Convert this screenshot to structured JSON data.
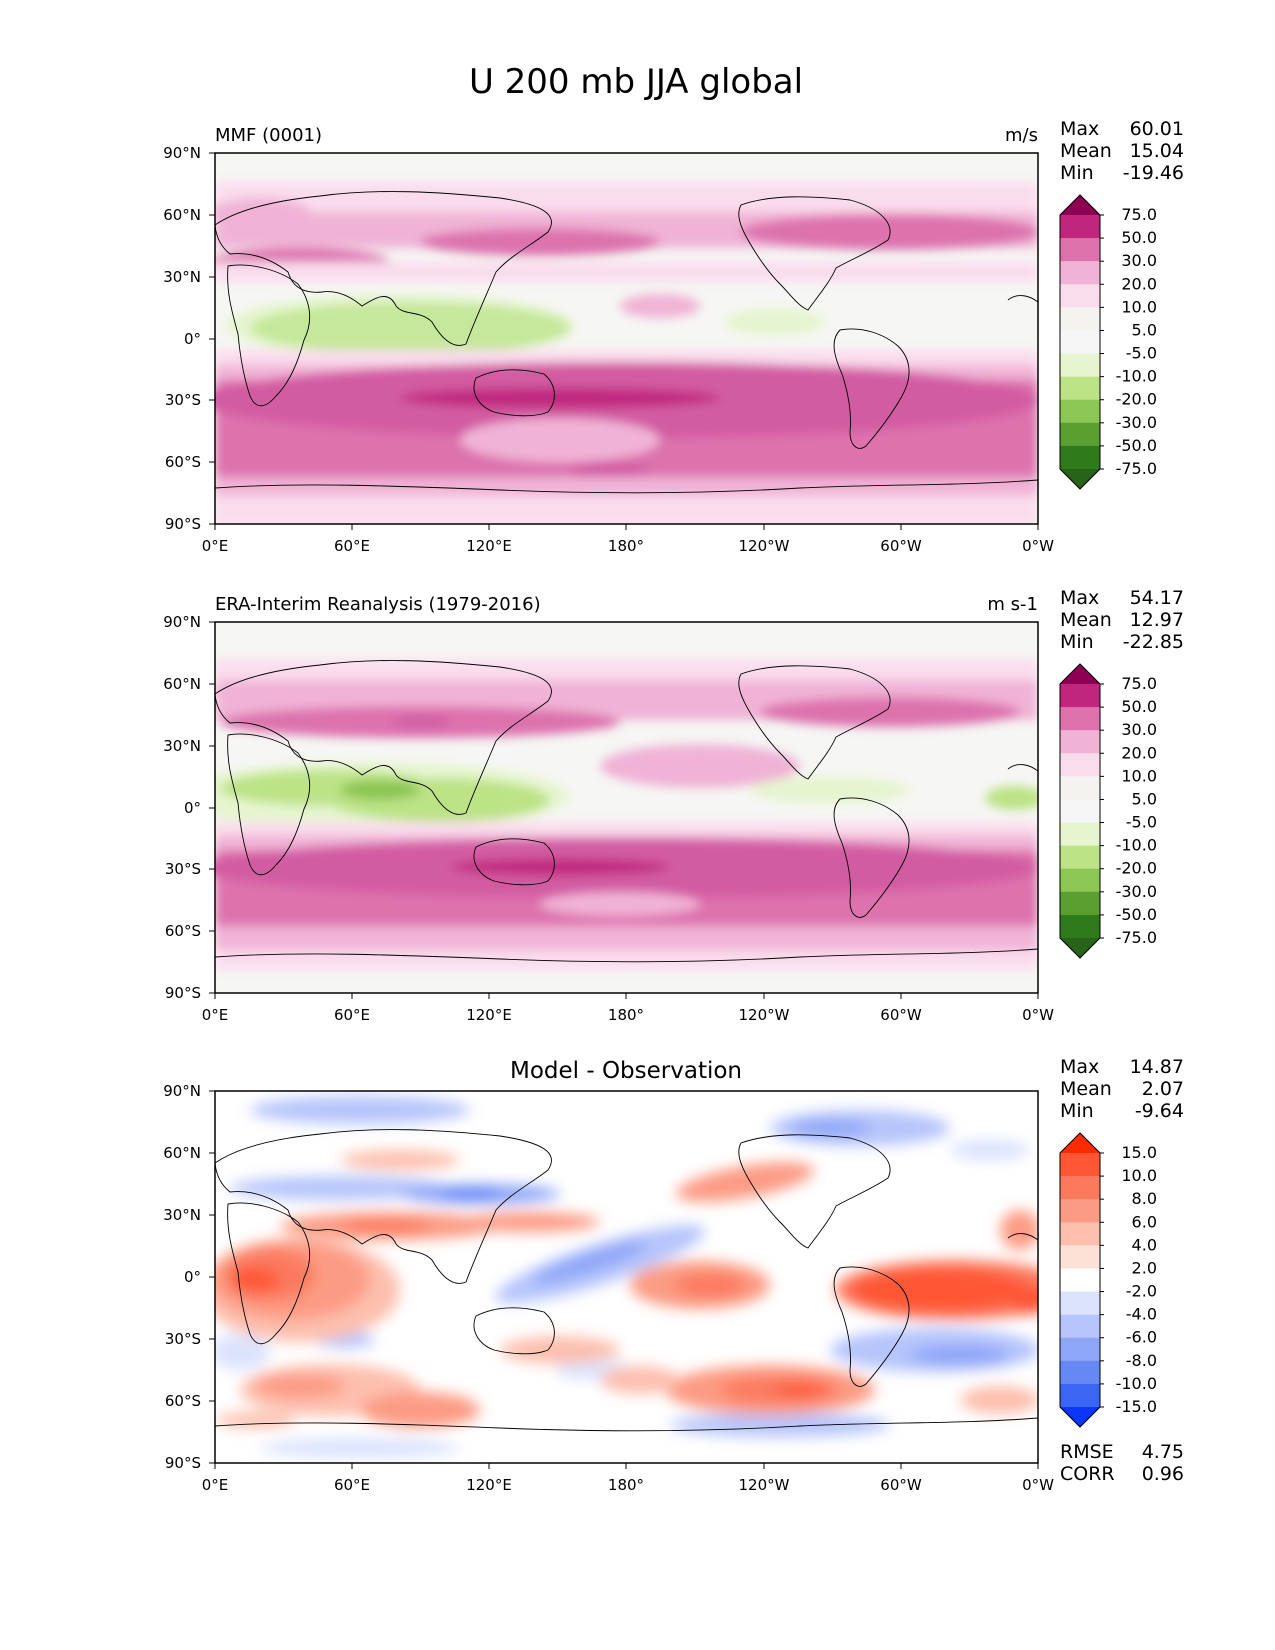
{
  "figure": {
    "title": "U 200 mb JJA global"
  },
  "lon_ticks": [
    "0°E",
    "60°E",
    "120°E",
    "180°",
    "120°W",
    "60°W",
    "0°W"
  ],
  "lat_ticks": [
    "90°N",
    "60°N",
    "30°N",
    "0°",
    "30°S",
    "60°S",
    "90°S"
  ],
  "panels": [
    {
      "left_title": "MMF (0001)",
      "center_title": "",
      "units": "m/s",
      "stats": [
        {
          "label": "Max",
          "value": "60.01"
        },
        {
          "label": "Mean",
          "value": "15.04"
        },
        {
          "label": "Min",
          "value": "-19.46"
        }
      ],
      "colorbar": {
        "labels": [
          "75.0",
          "50.0",
          "30.0",
          "20.0",
          "10.0",
          "5.0",
          "-5.0",
          "-10.0",
          "-20.0",
          "-30.0",
          "-50.0",
          "-75.0"
        ],
        "colors": [
          "#8e0152",
          "#c0267e",
          "#dd72ad",
          "#f0b3d6",
          "#fadded",
          "#f5f3ef",
          "#f6f6f6",
          "#e6f5d0",
          "#bce386",
          "#8cc653",
          "#5c9f31",
          "#2f7b1b",
          "#276419"
        ]
      },
      "footer": []
    },
    {
      "left_title": "ERA-Interim Reanalysis (1979-2016)",
      "center_title": "",
      "units": "m s-1",
      "stats": [
        {
          "label": "Max",
          "value": "54.17"
        },
        {
          "label": "Mean",
          "value": "12.97"
        },
        {
          "label": "Min",
          "value": "-22.85"
        }
      ],
      "colorbar": {
        "labels": [
          "75.0",
          "50.0",
          "30.0",
          "20.0",
          "10.0",
          "5.0",
          "-5.0",
          "-10.0",
          "-20.0",
          "-30.0",
          "-50.0",
          "-75.0"
        ],
        "colors": [
          "#8e0152",
          "#c0267e",
          "#dd72ad",
          "#f0b3d6",
          "#fadded",
          "#f5f3ef",
          "#f6f6f6",
          "#e6f5d0",
          "#bce386",
          "#8cc653",
          "#5c9f31",
          "#2f7b1b",
          "#276419"
        ]
      },
      "footer": []
    },
    {
      "left_title": "",
      "center_title": "Model - Observation",
      "units": "",
      "stats": [
        {
          "label": "Max",
          "value": "14.87"
        },
        {
          "label": "Mean",
          "value": "2.07"
        },
        {
          "label": "Min",
          "value": "-9.64"
        }
      ],
      "colorbar": {
        "labels": [
          "15.0",
          "10.0",
          "8.0",
          "6.0",
          "4.0",
          "2.0",
          "-2.0",
          "-4.0",
          "-6.0",
          "-8.0",
          "-10.0",
          "-15.0"
        ],
        "colors": [
          "#ff2a00",
          "#ff5636",
          "#fb7a5e",
          "#fc9b84",
          "#fdbfae",
          "#fde0d6",
          "#ffffff",
          "#dbe3fd",
          "#b6c5fb",
          "#8ea6f8",
          "#6688f5",
          "#3a66f2",
          "#0a36ff"
        ]
      },
      "footer": [
        {
          "label": "RMSE",
          "value": "4.75"
        },
        {
          "label": "CORR",
          "value": "0.96"
        }
      ]
    }
  ],
  "chart_data": [
    {
      "type": "heatmap",
      "title": "MMF (0001)",
      "units": "m/s",
      "x_ticks": [
        "0°E",
        "60°E",
        "120°E",
        "180°",
        "120°W",
        "60°W",
        "0°W"
      ],
      "y_ticks": [
        "90°N",
        "60°N",
        "30°N",
        "0°",
        "30°S",
        "60°S",
        "90°S"
      ],
      "color_levels": [
        -75,
        -50,
        -30,
        -20,
        -10,
        -5,
        5,
        10,
        20,
        30,
        50,
        75
      ],
      "stats": {
        "max": 60.01,
        "mean": 15.04,
        "min": -19.46
      },
      "features": [
        {
          "lon": [
            0,
            360
          ],
          "lat": [
            -60,
            -15
          ],
          "value": 40
        },
        {
          "lon": [
            170,
            210
          ],
          "lat": [
            -33,
            -27
          ],
          "value": 55
        },
        {
          "lon": [
            60,
            160
          ],
          "lat": [
            -5,
            20
          ],
          "value": -12
        },
        {
          "lon": [
            230,
            260
          ],
          "lat": [
            0,
            10
          ],
          "value": -8
        },
        {
          "lon": [
            0,
            360
          ],
          "lat": [
            30,
            60
          ],
          "value": 22
        }
      ]
    },
    {
      "type": "heatmap",
      "title": "ERA-Interim Reanalysis (1979-2016)",
      "units": "m s-1",
      "x_ticks": [
        "0°E",
        "60°E",
        "120°E",
        "180°",
        "120°W",
        "60°W",
        "0°W"
      ],
      "y_ticks": [
        "90°N",
        "60°N",
        "30°N",
        "0°",
        "30°S",
        "60°S",
        "90°S"
      ],
      "color_levels": [
        -75,
        -50,
        -30,
        -20,
        -10,
        -5,
        5,
        10,
        20,
        30,
        50,
        75
      ],
      "stats": {
        "max": 54.17,
        "mean": 12.97,
        "min": -22.85
      },
      "features": [
        {
          "lon": [
            0,
            360
          ],
          "lat": [
            -55,
            -15
          ],
          "value": 38
        },
        {
          "lon": [
            150,
            200
          ],
          "lat": [
            -33,
            -27
          ],
          "value": 52
        },
        {
          "lon": [
            0,
            130
          ],
          "lat": [
            -5,
            20
          ],
          "value": -15
        },
        {
          "lon": [
            50,
            100
          ],
          "lat": [
            0,
            15
          ],
          "value": -22
        },
        {
          "lon": [
            0,
            360
          ],
          "lat": [
            30,
            55
          ],
          "value": 22
        }
      ]
    },
    {
      "type": "heatmap",
      "title": "Model - Observation",
      "units": "",
      "x_ticks": [
        "0°E",
        "60°E",
        "120°E",
        "180°",
        "120°W",
        "60°W",
        "0°W"
      ],
      "y_ticks": [
        "90°N",
        "60°N",
        "30°N",
        "0°",
        "30°S",
        "60°S",
        "90°S"
      ],
      "color_levels": [
        -15,
        -10,
        -8,
        -6,
        -4,
        -2,
        2,
        4,
        6,
        8,
        10,
        15
      ],
      "stats": {
        "max": 14.87,
        "mean": 2.07,
        "min": -9.64,
        "rmse": 4.75,
        "corr": 0.96
      },
      "features": [
        {
          "lon": [
            0,
            80
          ],
          "lat": [
            -25,
            20
          ],
          "value": 9
        },
        {
          "lon": [
            270,
            360
          ],
          "lat": [
            -20,
            5
          ],
          "value": 12
        },
        {
          "lon": [
            190,
            260
          ],
          "lat": [
            -45,
            -35
          ],
          "value": 10
        },
        {
          "lon": [
            120,
            220
          ],
          "lat": [
            0,
            30
          ],
          "value": -7
        },
        {
          "lon": [
            30,
            160
          ],
          "lat": [
            35,
            50
          ],
          "value": -6
        },
        {
          "lon": [
            40,
            150
          ],
          "lat": [
            25,
            33
          ],
          "value": 8
        }
      ]
    }
  ]
}
